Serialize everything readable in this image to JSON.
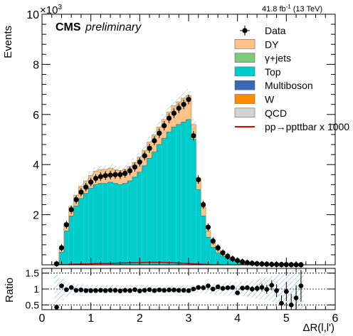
{
  "chart_data": {
    "type": "bar",
    "title": "",
    "experiment": "CMS",
    "status": "preliminary",
    "luminosity_label": "41.8 fb",
    "luminosity_superscript": "-1",
    "energy_label": "(13 TeV)",
    "exponent_base": "×10",
    "exponent_power": "3",
    "ylabel": "Events",
    "xlabel": "ΔR(l,l')",
    "ratio_ylabel": "Ratio",
    "xlim": [
      0,
      6
    ],
    "ylim": [
      0,
      10000
    ],
    "ratio_ylim": [
      0.35,
      1.65
    ],
    "x_ticks": [
      "0",
      "1",
      "2",
      "3",
      "4",
      "5",
      "6"
    ],
    "y_ticks": [
      "2",
      "4",
      "6",
      "8",
      "10"
    ],
    "ratio_y_ticks": [
      "0.5",
      "1",
      "1.5"
    ],
    "bin_width": 0.1,
    "x": [
      0.3,
      0.4,
      0.5,
      0.6,
      0.7,
      0.8,
      0.9,
      1.0,
      1.1,
      1.2,
      1.3,
      1.4,
      1.5,
      1.6,
      1.7,
      1.8,
      1.9,
      2.0,
      2.1,
      2.2,
      2.3,
      2.4,
      2.5,
      2.6,
      2.7,
      2.8,
      2.9,
      3.0,
      3.1,
      3.2,
      3.3,
      3.4,
      3.5,
      3.6,
      3.7,
      3.8,
      3.9,
      4.0,
      4.1,
      4.2,
      4.3,
      4.4,
      4.5,
      4.6,
      4.7,
      4.8,
      4.9,
      5.0,
      5.1,
      5.2,
      5.3
    ],
    "legend_position": "top-right",
    "legend": [
      {
        "label": "Data",
        "style": "marker",
        "color": "#000000"
      },
      {
        "label": "DY",
        "style": "box",
        "color": "#ffc38a"
      },
      {
        "label": "γ+jets",
        "style": "box",
        "color": "#7fc97f"
      },
      {
        "label": "Top",
        "style": "box",
        "color": "#00cccc"
      },
      {
        "label": "Multiboson",
        "style": "box",
        "color": "#3a67b5"
      },
      {
        "label": "W",
        "style": "box",
        "color": "#ff8c00"
      },
      {
        "label": "QCD",
        "style": "box",
        "color": "#d3d3d3"
      },
      {
        "label": "pp→ppttbar x 1000",
        "style": "line",
        "color": "#cc0000"
      }
    ],
    "series": [
      {
        "name": "Top",
        "color": "#00cccc",
        "values": [
          60,
          500,
          1350,
          1950,
          2350,
          2650,
          2850,
          3050,
          3200,
          3250,
          3250,
          3300,
          3250,
          3200,
          3250,
          3350,
          3500,
          3700,
          3950,
          4250,
          4500,
          4800,
          5050,
          5300,
          5500,
          5600,
          5700,
          5800,
          5000,
          3000,
          1950,
          1100,
          700,
          480,
          340,
          240,
          170,
          120,
          80,
          60,
          40,
          30,
          20,
          15,
          10,
          8,
          6,
          5,
          4,
          3,
          2
        ]
      },
      {
        "name": "DY",
        "color": "#ffc38a",
        "values": [
          40,
          150,
          280,
          380,
          430,
          480,
          500,
          520,
          540,
          550,
          560,
          560,
          550,
          560,
          560,
          570,
          580,
          600,
          620,
          650,
          680,
          700,
          750,
          800,
          850,
          900,
          950,
          950,
          600,
          450,
          350,
          250,
          160,
          110,
          80,
          55,
          40,
          30,
          20,
          14,
          10,
          8,
          6,
          5,
          4,
          3,
          2,
          2,
          1,
          1,
          1
        ]
      },
      {
        "name": "Data",
        "color": "#000000",
        "values": [
          40,
          680,
          1600,
          2200,
          2600,
          2900,
          3100,
          3300,
          3450,
          3520,
          3560,
          3580,
          3600,
          3600,
          3650,
          3750,
          3900,
          4100,
          4350,
          4650,
          4950,
          5250,
          5550,
          5850,
          6050,
          6250,
          6400,
          6600,
          5150,
          3400,
          2400,
          1500,
          950,
          680,
          480,
          340,
          240,
          170,
          120,
          85,
          60,
          45,
          35,
          25,
          18,
          14,
          10,
          8,
          6,
          4,
          3
        ]
      }
    ],
    "signal_values": [
      5,
      10,
      15,
      20,
      25,
      30,
      35,
      40,
      45,
      50,
      55,
      60,
      65,
      70,
      75,
      80,
      85,
      90,
      95,
      100,
      100,
      100,
      95,
      90,
      80,
      70,
      60,
      50,
      40,
      30,
      20,
      10,
      5,
      2,
      1,
      0,
      0,
      0,
      0,
      0,
      0,
      0,
      0,
      0,
      0,
      0,
      0,
      0,
      0,
      0,
      0
    ],
    "ratio": [
      0.43,
      1.1,
      0.98,
      1.05,
      0.96,
      0.97,
      0.95,
      0.95,
      0.95,
      0.96,
      0.95,
      0.96,
      0.96,
      0.94,
      0.96,
      0.95,
      0.98,
      0.94,
      0.96,
      0.98,
      0.95,
      0.97,
      0.96,
      0.97,
      0.97,
      0.96,
      0.96,
      0.95,
      1.0,
      1.05,
      1.04,
      1.1,
      1.0,
      1.07,
      1.02,
      1.04,
      1.05,
      0.88,
      1.03,
      1.04,
      1.0,
      1.02,
      1.05,
      0.99,
      1.12,
      0.95,
      0.55,
      0.92,
      0.5,
      0.72,
      1.1
    ],
    "ratio_errors": [
      0.05,
      0.04,
      0.03,
      0.02,
      0.02,
      0.02,
      0.02,
      0.02,
      0.02,
      0.02,
      0.02,
      0.02,
      0.02,
      0.02,
      0.02,
      0.02,
      0.02,
      0.02,
      0.02,
      0.02,
      0.02,
      0.02,
      0.02,
      0.02,
      0.02,
      0.02,
      0.02,
      0.02,
      0.02,
      0.02,
      0.02,
      0.03,
      0.03,
      0.04,
      0.04,
      0.05,
      0.05,
      0.06,
      0.07,
      0.08,
      0.09,
      0.1,
      0.12,
      0.14,
      0.16,
      0.2,
      0.25,
      0.3,
      0.35,
      0.4,
      0.5
    ],
    "ratio_band_halfwidth": [
      0.45,
      0.35,
      0.25,
      0.2,
      0.18,
      0.15,
      0.14,
      0.13,
      0.13,
      0.12,
      0.12,
      0.12,
      0.12,
      0.12,
      0.12,
      0.12,
      0.12,
      0.12,
      0.12,
      0.12,
      0.12,
      0.12,
      0.12,
      0.12,
      0.12,
      0.12,
      0.12,
      0.12,
      0.13,
      0.14,
      0.15,
      0.16,
      0.17,
      0.18,
      0.19,
      0.2,
      0.21,
      0.22,
      0.23,
      0.25,
      0.27,
      0.3,
      0.33,
      0.36,
      0.4,
      0.45,
      0.5,
      0.55,
      0.6,
      0.65,
      0.7
    ]
  }
}
